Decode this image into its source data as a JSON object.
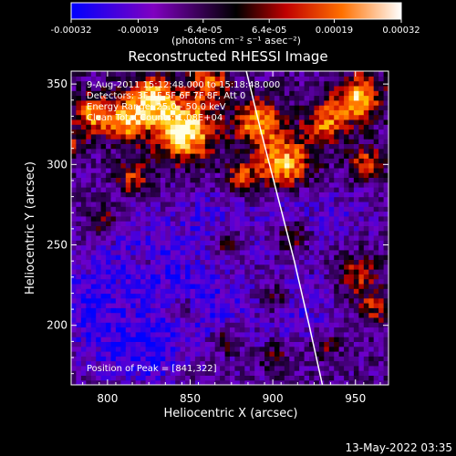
{
  "chart_data": {
    "type": "heatmap",
    "title": "Reconstructed RHESSI Image",
    "xlabel": "Heliocentric X (arcsec)",
    "ylabel": "Heliocentric Y (arcsec)",
    "xlim": [
      778,
      970
    ],
    "ylim": [
      163,
      358
    ],
    "x_ticks": [
      "800",
      "850",
      "900",
      "950"
    ],
    "x_tick_values": [
      800,
      850,
      900,
      950
    ],
    "y_ticks": [
      "200",
      "250",
      "300",
      "350"
    ],
    "y_tick_values": [
      200,
      250,
      300,
      350
    ],
    "colorbar": {
      "range": [
        -0.00032,
        0.00032
      ],
      "ticks": [
        "-0.00032",
        "-0.00019",
        "-6.4e-05",
        "6.4e-05",
        "0.00019",
        "0.00032"
      ],
      "tick_values": [
        -0.00032,
        -0.00019,
        -6.4e-05,
        6.4e-05,
        0.00019,
        0.00032
      ],
      "unit_label": "(photons cm⁻² s⁻¹ asec⁻²)",
      "colors": [
        "#0000ff",
        "#8000c0",
        "#000000",
        "#c00000",
        "#ff7000",
        "#ffffff"
      ]
    },
    "annotations": [
      "9-Aug-2011 15:12:48.000 to 15:18:48.000",
      "Detectors: 3F 4F 5F 6F 7F 8F, Att 0",
      "Energy Range: 25.0 - 50.0 keV",
      "Clean     Total Counts: 1.08E+04"
    ],
    "peak_label": "Position of Peak = [841,322]",
    "peak": [
      841,
      322
    ],
    "limb_curve": {
      "x": [
        884,
        893,
        903,
        913,
        922,
        930
      ],
      "y": [
        358,
        320,
        280,
        240,
        200,
        163
      ]
    }
  },
  "footer": {
    "date": "13-May-2022 03:35"
  },
  "colors": {
    "limb": "#ffffff",
    "axes": "#ffffff",
    "background": "#000000"
  }
}
